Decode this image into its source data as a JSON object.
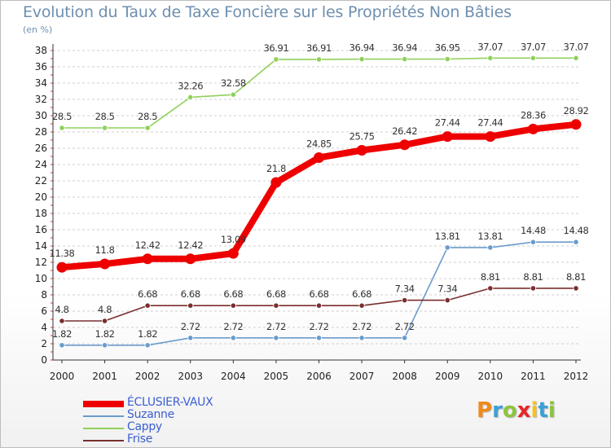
{
  "title": "Evolution du Taux de Taxe Foncière sur les Propriétés Non Bâties",
  "unit_label": "(en %)",
  "logo": {
    "text": "Proxiti",
    "letters": [
      {
        "ch": "P",
        "color": "#f08a1c"
      },
      {
        "ch": "r",
        "color": "#3d9fd6"
      },
      {
        "ch": "o",
        "color": "#8cc43f"
      },
      {
        "ch": "x",
        "color": "#e8262a"
      },
      {
        "ch": "i",
        "color": "#f6c21a"
      },
      {
        "ch": "t",
        "color": "#3d9fd6"
      },
      {
        "ch": "i",
        "color": "#8cc43f"
      }
    ]
  },
  "chart_data": {
    "type": "line",
    "title": "Evolution du Taux de Taxe Foncière sur les Propriétés Non Bâties",
    "ylabel": "(en %)",
    "xlabel": "",
    "x": [
      "2000",
      "2001",
      "2002",
      "2003",
      "2004",
      "2005",
      "2006",
      "2007",
      "2008",
      "2009",
      "2010",
      "2011",
      "2012"
    ],
    "ylim": [
      0,
      38
    ],
    "yticks": [
      0,
      2,
      4,
      6,
      8,
      10,
      12,
      14,
      16,
      18,
      20,
      22,
      24,
      26,
      28,
      30,
      32,
      34,
      36,
      38
    ],
    "grid": "horizontal dashed",
    "legend_position": "bottom-left",
    "series": [
      {
        "name": "ÉCLUSIER-VAUX",
        "color": "#ee0000",
        "emphasis": true,
        "values": [
          11.38,
          11.8,
          12.42,
          12.42,
          13.09,
          21.8,
          24.85,
          25.75,
          26.42,
          27.44,
          27.44,
          28.36,
          28.92
        ],
        "labels": [
          "11.38",
          "11.8",
          "12.42",
          "12.42",
          "13.09",
          "21.8",
          "24.85",
          "25.75",
          "26.42",
          "27.44",
          "27.44",
          "28.36",
          "28.92"
        ]
      },
      {
        "name": "Suzanne",
        "color": "#6a9ccc",
        "values": [
          1.82,
          1.82,
          1.82,
          2.72,
          2.72,
          2.72,
          2.72,
          2.72,
          2.72,
          13.81,
          13.81,
          14.48,
          14.48
        ],
        "labels": [
          "1.82",
          "1.82",
          "1.82",
          "2.72",
          "2.72",
          "2.72",
          "2.72",
          "2.72",
          "2.72",
          "13.81",
          "13.81",
          "14.48",
          "14.48"
        ]
      },
      {
        "name": "Cappy",
        "color": "#8fd05a",
        "values": [
          28.5,
          28.5,
          28.5,
          32.26,
          32.58,
          36.91,
          36.91,
          36.94,
          36.94,
          36.95,
          37.07,
          37.07,
          37.07
        ],
        "labels": [
          "28.5",
          "28.5",
          "28.5",
          "32.26",
          "32.58",
          "36.91",
          "36.91",
          "36.94",
          "36.94",
          "36.95",
          "37.07",
          "37.07",
          "37.07"
        ]
      },
      {
        "name": "Frise",
        "color": "#7a2e2e",
        "values": [
          4.8,
          4.8,
          6.68,
          6.68,
          6.68,
          6.68,
          6.68,
          6.68,
          7.34,
          7.34,
          8.81,
          8.81,
          8.81
        ],
        "labels": [
          "4.8",
          "4.8",
          "6.68",
          "6.68",
          "6.68",
          "6.68",
          "6.68",
          "6.68",
          "7.34",
          "7.34",
          "8.81",
          "8.81",
          "8.81"
        ]
      }
    ]
  }
}
